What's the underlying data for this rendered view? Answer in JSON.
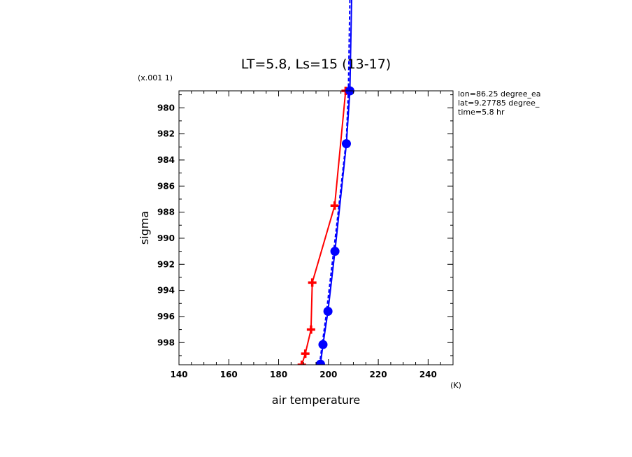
{
  "chart_data": {
    "type": "line",
    "title": "LT=5.8, Ls=15 (13-17)",
    "xlabel": "air temperature",
    "x_unit": "(K)",
    "ylabel": "sigma",
    "y_scale_note": "(x.001 1)",
    "xlim": [
      140,
      250
    ],
    "ylim": [
      999.7,
      978.7
    ],
    "x_ticks": [
      140,
      160,
      180,
      200,
      220,
      240
    ],
    "x_tick_labels": [
      "140",
      "160",
      "180",
      "200",
      "220",
      "240"
    ],
    "y_ticks": [
      980,
      982,
      984,
      986,
      988,
      990,
      992,
      994,
      996,
      998
    ],
    "y_tick_labels": [
      "980",
      "982",
      "984",
      "986",
      "988",
      "990",
      "992",
      "994",
      "996",
      "998"
    ],
    "annotations": [
      "lon=86.25 degree_ea",
      "lat=9.27785 degree_",
      "time=5.8 hr"
    ],
    "series": [
      {
        "color": "#ff0000",
        "marker": "plus",
        "style": "solid",
        "points": [
          [
            189.3,
            999.7
          ],
          [
            190.7,
            998.85
          ],
          [
            193.0,
            997.0
          ],
          [
            193.5,
            993.4
          ],
          [
            202.5,
            987.5
          ],
          [
            206.9,
            978.7
          ]
        ]
      },
      {
        "color": "#0000ff",
        "marker": "circle",
        "style": "solid",
        "points": [
          [
            196.8,
            999.65
          ],
          [
            197.8,
            998.15
          ],
          [
            199.8,
            995.6
          ],
          [
            202.6,
            991.0
          ],
          [
            207.2,
            982.75
          ],
          [
            208.6,
            978.7
          ],
          [
            209.3,
            971.7
          ]
        ]
      },
      {
        "color": "#0000ff",
        "marker": "none",
        "style": "dashed",
        "points": [
          [
            196.4,
            999.7
          ],
          [
            199.0,
            996.0
          ],
          [
            203.2,
            989.2
          ],
          [
            207.2,
            982.4
          ],
          [
            208.0,
            978.7
          ],
          [
            208.6,
            971.7
          ]
        ]
      }
    ]
  }
}
